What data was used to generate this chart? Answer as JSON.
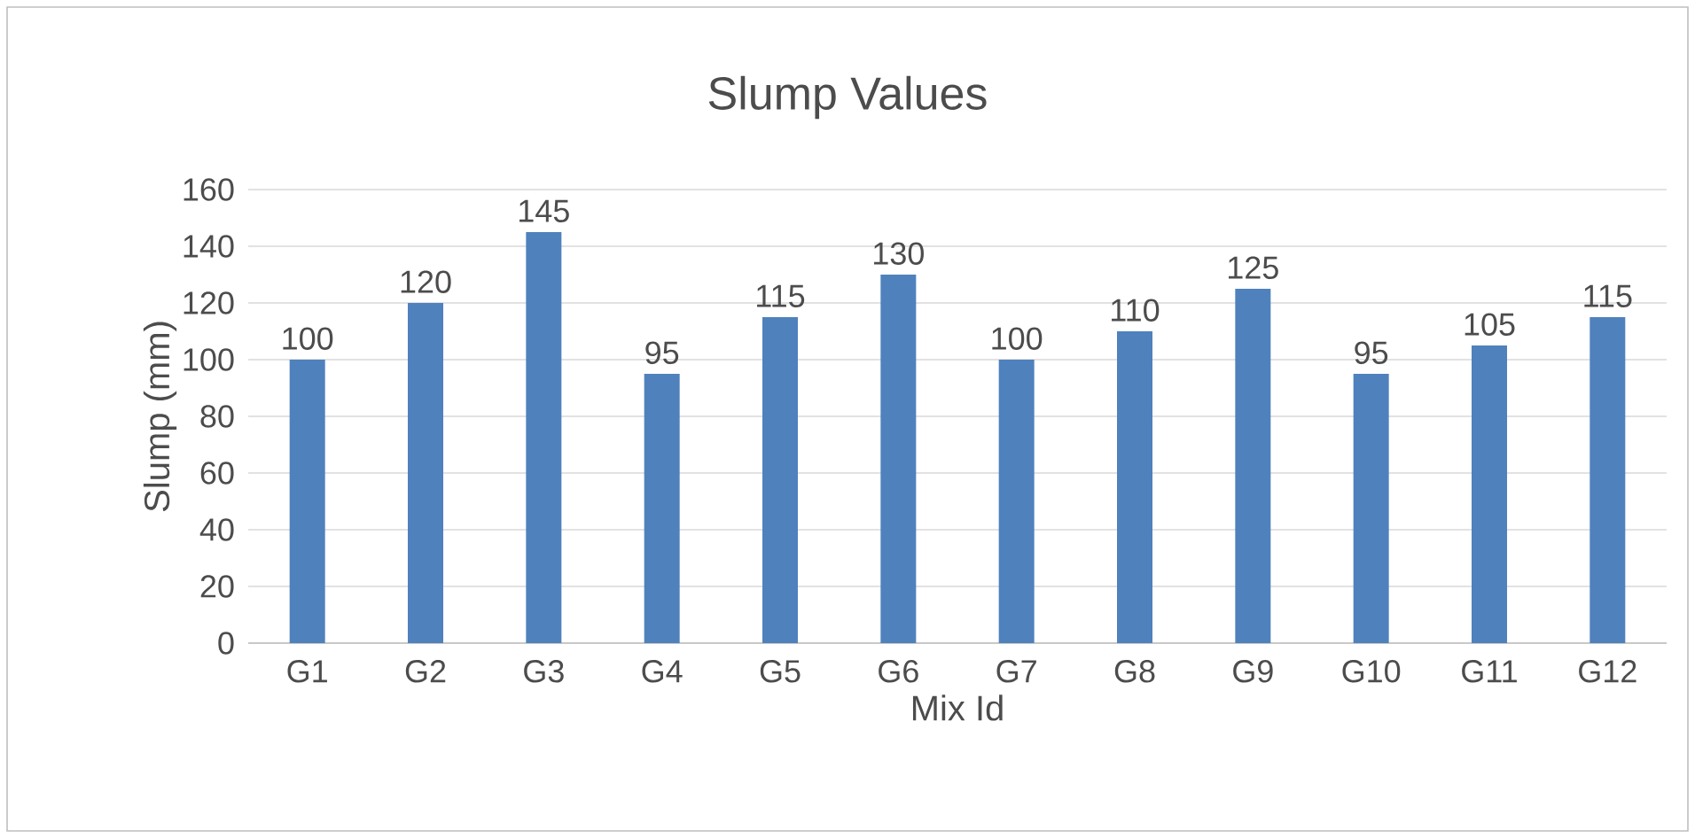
{
  "chart_data": {
    "type": "bar",
    "title": "Slump Values",
    "xlabel": "Mix Id",
    "ylabel": "Slump (mm)",
    "categories": [
      "G1",
      "G2",
      "G3",
      "G4",
      "G5",
      "G6",
      "G7",
      "G8",
      "G9",
      "G10",
      "G11",
      "G12"
    ],
    "values": [
      100,
      120,
      145,
      95,
      115,
      130,
      100,
      110,
      125,
      95,
      105,
      115
    ],
    "color": "#4f81bd",
    "ylim": [
      0,
      160
    ],
    "yticks": [
      0,
      20,
      40,
      60,
      80,
      100,
      120,
      140,
      160
    ],
    "grid": "y",
    "data_labels": true
  }
}
